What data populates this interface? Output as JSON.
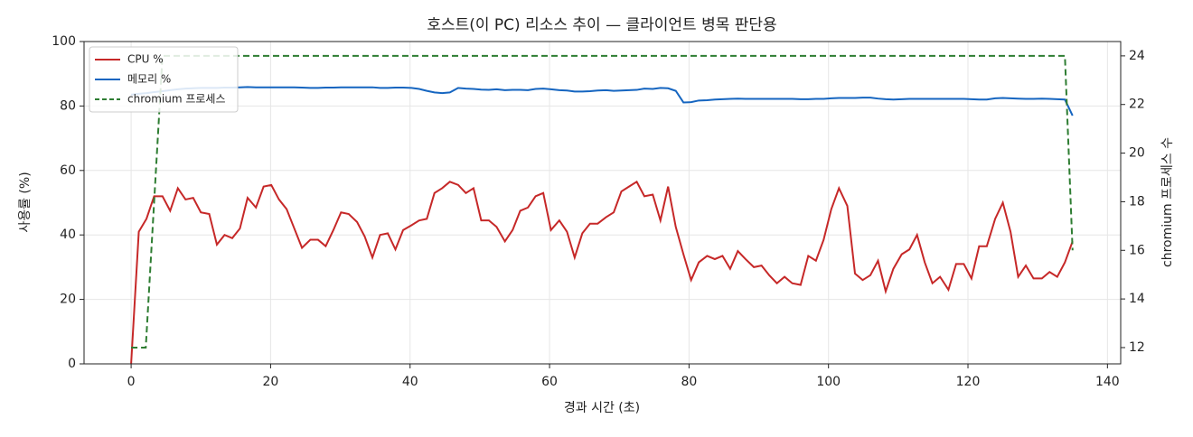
{
  "chart_data": {
    "type": "line",
    "title": "호스트(이 PC) 리소스 추이 — 클라이언트 병목 판단용",
    "xlabel": "경과 시간 (초)",
    "ylabel": "사용률 (%)",
    "y2label": "chromium 프로세스 수",
    "x": [
      0,
      1.1,
      2.2,
      3.3,
      4.5,
      5.6,
      6.7,
      7.8,
      8.9,
      10.0,
      11.2,
      12.3,
      13.4,
      14.5,
      15.6,
      16.7,
      17.9,
      19.0,
      20.1,
      21.2,
      22.3,
      23.4,
      24.5,
      25.7,
      26.8,
      27.9,
      29.0,
      30.1,
      31.2,
      32.4,
      33.5,
      34.6,
      35.7,
      36.8,
      37.9,
      39.0,
      40.2,
      41.3,
      42.4,
      43.5,
      44.6,
      45.7,
      46.9,
      48.0,
      49.1,
      50.2,
      51.3,
      52.4,
      53.6,
      54.7,
      55.8,
      56.9,
      58.0,
      59.1,
      60.2,
      61.4,
      62.5,
      63.6,
      64.7,
      65.8,
      66.9,
      68.1,
      69.2,
      70.3,
      71.4,
      72.5,
      73.6,
      74.8,
      75.9,
      77.0,
      78.1,
      79.2,
      80.3,
      81.4,
      82.6,
      83.7,
      84.8,
      85.9,
      87.0,
      88.1,
      89.3,
      90.4,
      91.5,
      92.6,
      93.7,
      94.8,
      96.0,
      97.1,
      98.2,
      99.3,
      100.4,
      101.5,
      102.7,
      103.8,
      104.9,
      106.0,
      107.1,
      108.2,
      109.3,
      110.5,
      111.6,
      112.7,
      113.8,
      114.9,
      116.0,
      117.2,
      118.3,
      119.4,
      120.5,
      121.6,
      122.7,
      123.9,
      125.0,
      126.1,
      127.2,
      128.3,
      129.4,
      130.6,
      131.7,
      132.8,
      133.9,
      135.0
    ],
    "series": [
      {
        "name": "CPU %",
        "color": "#c62828",
        "values": [
          0,
          41,
          45,
          52,
          52,
          47.5,
          54.5,
          51,
          51.5,
          47,
          46.5,
          37,
          40,
          39,
          42,
          51.5,
          48.5,
          55,
          55.5,
          51,
          48,
          42,
          36,
          38.5,
          38.5,
          36.5,
          41.5,
          47,
          46.5,
          44,
          39.5,
          33,
          40,
          40.5,
          35.5,
          41.5,
          43,
          44.5,
          45,
          53,
          54.5,
          56.5,
          55.5,
          53,
          54.5,
          44.5,
          44.5,
          42.5,
          38,
          41.5,
          47.5,
          48.5,
          52,
          53,
          41.5,
          44.5,
          41,
          33,
          40.5,
          43.5,
          43.5,
          45.5,
          47,
          53.5,
          55,
          56.5,
          52,
          52.5,
          44.5,
          55,
          42.5,
          34,
          26,
          31.5,
          33.5,
          32.5,
          33.5,
          29.5,
          35,
          32.5,
          30,
          30.5,
          27.5,
          25,
          27,
          25,
          24.5,
          33.5,
          32,
          38.5,
          48,
          54.5,
          49,
          28,
          26,
          27.5,
          32,
          22.5,
          29.5,
          34,
          35.5,
          40,
          31.5,
          25,
          27,
          23,
          31,
          31,
          26.5,
          36.5,
          36.5,
          45,
          50,
          41,
          27,
          30.5,
          26.5,
          26.5,
          28.5,
          27,
          31.5,
          38
        ]
      },
      {
        "name": "메모리 %",
        "color": "#1565c0",
        "values": [
          83.5,
          83.8,
          84,
          84.3,
          84.6,
          84.9,
          85.2,
          85.4,
          85.5,
          85.6,
          85.6,
          85.6,
          85.7,
          85.7,
          85.8,
          85.9,
          85.8,
          85.8,
          85.8,
          85.8,
          85.8,
          85.8,
          85.7,
          85.6,
          85.6,
          85.7,
          85.7,
          85.8,
          85.8,
          85.8,
          85.8,
          85.8,
          85.6,
          85.6,
          85.7,
          85.7,
          85.6,
          85.3,
          84.7,
          84.2,
          84.0,
          84.2,
          85.6,
          85.4,
          85.3,
          85.1,
          85.0,
          85.2,
          84.9,
          85.0,
          85.0,
          84.9,
          85.3,
          85.4,
          85.2,
          84.9,
          84.8,
          84.5,
          84.5,
          84.6,
          84.8,
          84.9,
          84.7,
          84.8,
          84.9,
          85.0,
          85.4,
          85.3,
          85.6,
          85.5,
          84.7,
          81.1,
          81.2,
          81.7,
          81.8,
          82.0,
          82.1,
          82.2,
          82.3,
          82.2,
          82.2,
          82.2,
          82.2,
          82.2,
          82.2,
          82.2,
          82.1,
          82.1,
          82.2,
          82.2,
          82.4,
          82.5,
          82.5,
          82.5,
          82.6,
          82.6,
          82.3,
          82.1,
          82.0,
          82.1,
          82.2,
          82.2,
          82.2,
          82.2,
          82.2,
          82.2,
          82.2,
          82.2,
          82.1,
          82.0,
          82.0,
          82.4,
          82.5,
          82.4,
          82.3,
          82.2,
          82.2,
          82.3,
          82.2,
          82.1,
          82.0,
          77.0
        ]
      },
      {
        "name": "chromium 프로세스",
        "color": "#2e7d32",
        "dashed": true,
        "axis": "y2",
        "x": [
          0,
          2.1,
          4.5,
          133.9,
          135
        ],
        "values": [
          12,
          12,
          24,
          24,
          16
        ]
      }
    ],
    "xlim": [
      -6.75,
      141.9
    ],
    "xticks": [
      0,
      20,
      40,
      60,
      80,
      100,
      120,
      140
    ],
    "ylim": [
      0,
      100
    ],
    "yticks": [
      0,
      20,
      40,
      60,
      80,
      100
    ],
    "y2lim": [
      11.33,
      24.59
    ],
    "y2ticks": [
      12,
      14,
      16,
      18,
      20,
      22,
      24
    ],
    "grid": true,
    "legend": "upper left"
  }
}
